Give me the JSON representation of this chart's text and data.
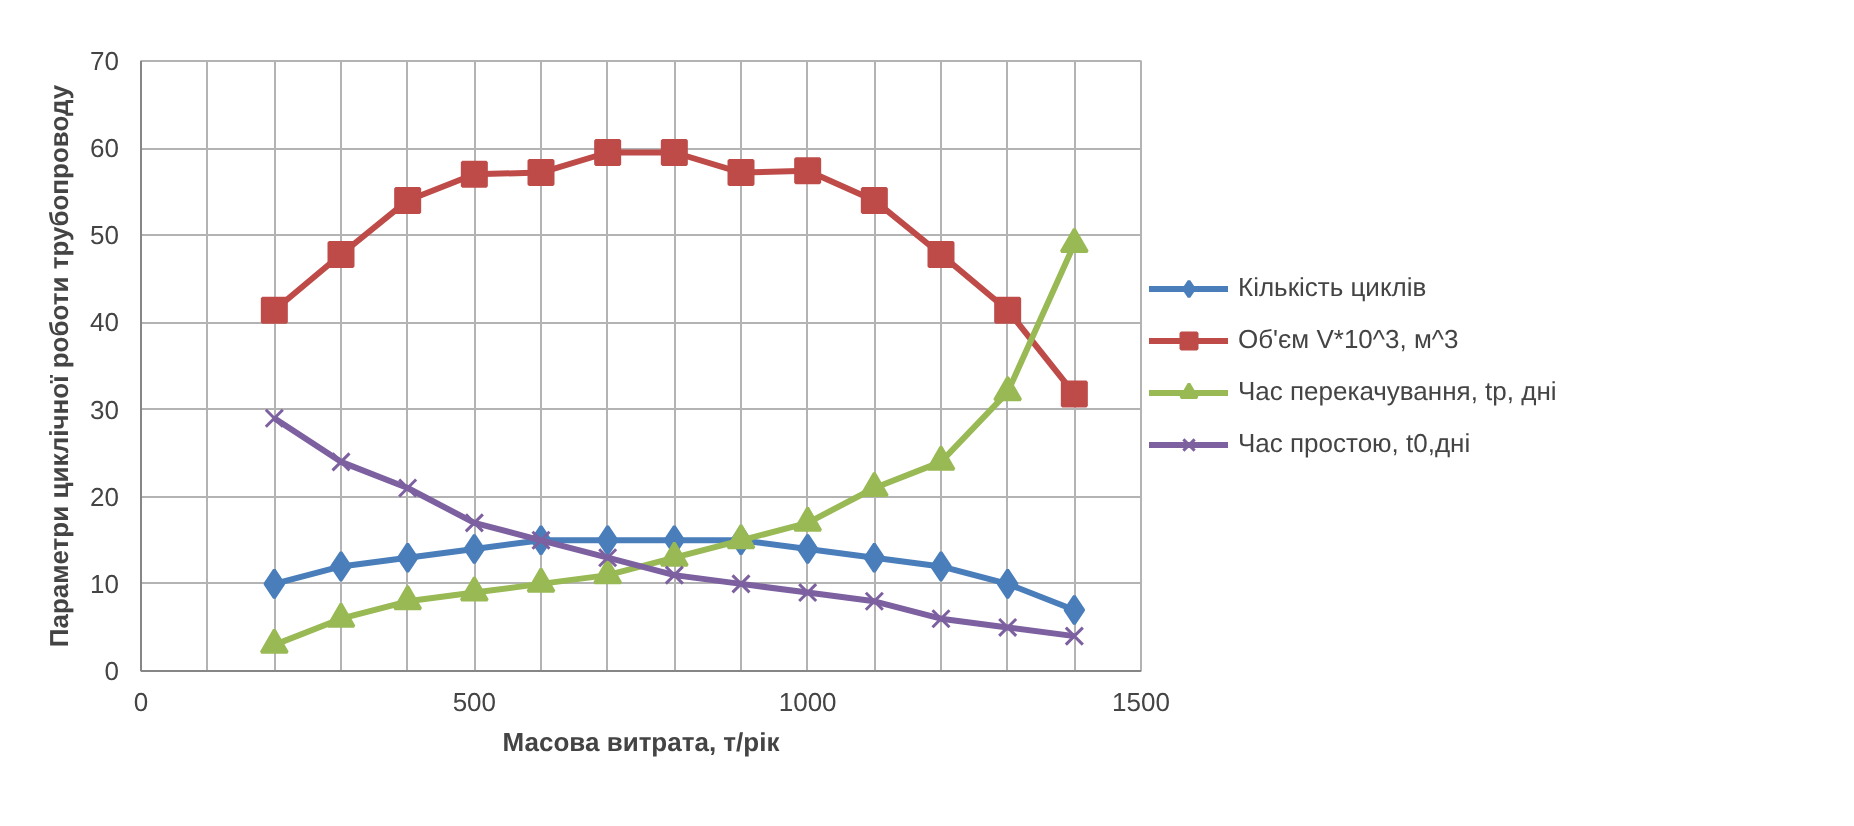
{
  "chart_data": {
    "type": "line",
    "xlabel": "Масова витрата, т/рік",
    "ylabel": "Параметри циклічної роботи трубопроводу",
    "x": [
      200,
      300,
      400,
      500,
      600,
      700,
      800,
      900,
      1000,
      1100,
      1200,
      1300,
      1400
    ],
    "series": [
      {
        "name": "Кількість циклів",
        "color": "#4a7ebb",
        "marker": "diamond",
        "values": [
          10,
          12,
          13,
          14,
          15,
          15,
          15,
          15,
          14,
          13,
          12,
          10,
          7
        ]
      },
      {
        "name": "Об'єм V*10^3, м^3",
        "color": "#be4b48",
        "marker": "square",
        "values": [
          41.4,
          47.8,
          54,
          57,
          57.2,
          59.5,
          59.5,
          57.2,
          57.4,
          54,
          47.8,
          41.4,
          31.8
        ]
      },
      {
        "name": "Час перекачування, tp, дні",
        "color": "#98b954",
        "marker": "triangle",
        "values": [
          3,
          6,
          8,
          9,
          10,
          11,
          13,
          15,
          17,
          21,
          24,
          32,
          49
        ]
      },
      {
        "name": "Час простою, t0,дні",
        "color": "#7d60a0",
        "marker": "cross",
        "values": [
          29,
          24,
          21,
          17,
          15,
          13,
          11,
          10,
          9,
          8,
          6,
          5,
          4
        ]
      }
    ],
    "xlim": [
      0,
      1500
    ],
    "xticks": [
      0,
      {
        "value": 100,
        "label": null
      },
      {
        "value": 200,
        "label": null
      },
      {
        "value": 300,
        "label": null
      },
      {
        "value": 400,
        "label": null
      },
      500,
      {
        "value": 600,
        "label": null
      },
      {
        "value": 700,
        "label": null
      },
      {
        "value": 800,
        "label": null
      },
      {
        "value": 900,
        "label": null
      },
      1000,
      {
        "value": 1100,
        "label": null
      },
      {
        "value": 1200,
        "label": null
      },
      {
        "value": 1300,
        "label": null
      },
      {
        "value": 1400,
        "label": null
      },
      1500
    ],
    "ylim": [
      0,
      70
    ],
    "yticks": [
      0,
      10,
      20,
      30,
      40,
      50,
      60,
      70
    ],
    "grid": true,
    "legend": "right",
    "line_style": "solid"
  }
}
